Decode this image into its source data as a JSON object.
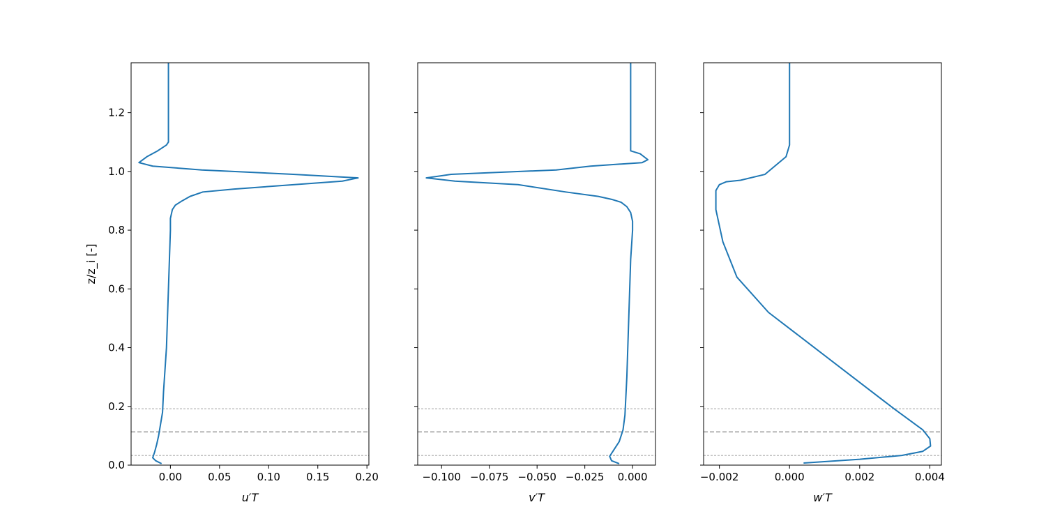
{
  "chart_data": [
    {
      "type": "line",
      "xlabel": "u′T",
      "ylabel": "z/z_i [-]",
      "xlim": [
        -0.04,
        0.202
      ],
      "ylim": [
        0.0,
        1.37
      ],
      "xticks": [
        0.0,
        0.05,
        0.1,
        0.15,
        0.2
      ],
      "xtick_labels": [
        "0.00",
        "0.05",
        "0.10",
        "0.15",
        "0.20"
      ],
      "yticks": [
        0.0,
        0.2,
        0.4,
        0.6,
        0.8,
        1.0,
        1.2
      ],
      "ytick_labels": [
        "0.0",
        "0.2",
        "0.4",
        "0.6",
        "0.8",
        "1.0",
        "1.2"
      ],
      "show_ytick_labels": true,
      "grid": false,
      "color": "#1f77b4",
      "hlines": [
        {
          "y": 0.192,
          "style": "thin"
        },
        {
          "y": 0.113,
          "style": "dashed"
        },
        {
          "y": 0.033,
          "style": "thin"
        }
      ],
      "series": [
        {
          "x": [
            -0.009,
            -0.015,
            -0.018,
            -0.016,
            -0.014,
            -0.012,
            -0.01,
            -0.008,
            -0.007,
            -0.004,
            -0.003,
            -0.002,
            -0.001,
            0.0,
            0.0,
            0.002,
            0.005,
            0.012,
            0.02,
            0.033,
            0.065,
            0.175,
            0.191,
            0.125,
            0.032,
            -0.018,
            -0.032,
            -0.024,
            -0.013,
            -0.004,
            -0.002,
            -0.002,
            -0.002
          ],
          "y": [
            0.005,
            0.015,
            0.025,
            0.045,
            0.07,
            0.1,
            0.14,
            0.18,
            0.25,
            0.4,
            0.5,
            0.6,
            0.7,
            0.8,
            0.84,
            0.87,
            0.885,
            0.9,
            0.915,
            0.93,
            0.94,
            0.967,
            0.978,
            0.99,
            1.005,
            1.018,
            1.03,
            1.05,
            1.07,
            1.09,
            1.1,
            1.2,
            1.37
          ]
        }
      ]
    },
    {
      "type": "line",
      "xlabel": "v′T",
      "ylabel": "",
      "xlim": [
        -0.1125,
        0.012
      ],
      "ylim": [
        0.0,
        1.37
      ],
      "xticks": [
        -0.1,
        -0.075,
        -0.05,
        -0.025,
        0.0
      ],
      "xtick_labels": [
        "−0.100",
        "−0.075",
        "−0.050",
        "−0.025",
        "0.000"
      ],
      "yticks": [
        0.0,
        0.2,
        0.4,
        0.6,
        0.8,
        1.0,
        1.2
      ],
      "ytick_labels": [],
      "show_ytick_labels": false,
      "grid": false,
      "color": "#1f77b4",
      "hlines": [
        {
          "y": 0.192,
          "style": "thin"
        },
        {
          "y": 0.113,
          "style": "dashed"
        },
        {
          "y": 0.033,
          "style": "thin"
        }
      ],
      "series": [
        {
          "x": [
            -0.007,
            -0.011,
            -0.012,
            -0.01,
            -0.007,
            -0.005,
            -0.004,
            -0.003,
            -0.002,
            -0.001,
            0.0,
            0.0,
            -0.001,
            -0.003,
            -0.006,
            -0.011,
            -0.018,
            -0.035,
            -0.06,
            -0.093,
            -0.108,
            -0.095,
            -0.04,
            -0.022,
            0.005,
            0.008,
            0.004,
            -0.001,
            -0.001,
            -0.001,
            -0.001
          ],
          "y": [
            0.005,
            0.015,
            0.03,
            0.05,
            0.08,
            0.12,
            0.17,
            0.3,
            0.5,
            0.7,
            0.8,
            0.83,
            0.86,
            0.88,
            0.895,
            0.905,
            0.915,
            0.93,
            0.955,
            0.967,
            0.978,
            0.99,
            1.005,
            1.018,
            1.03,
            1.04,
            1.06,
            1.07,
            1.09,
            1.2,
            1.37
          ]
        }
      ]
    },
    {
      "type": "line",
      "xlabel": "w′T",
      "ylabel": "",
      "xlim": [
        -0.00245,
        0.00433
      ],
      "ylim": [
        0.0,
        1.37
      ],
      "xticks": [
        -0.002,
        0.0,
        0.002,
        0.004
      ],
      "xtick_labels": [
        "−0.002",
        "0.000",
        "0.002",
        "0.004"
      ],
      "yticks": [
        0.0,
        0.2,
        0.4,
        0.6,
        0.8,
        1.0,
        1.2
      ],
      "ytick_labels": [],
      "show_ytick_labels": false,
      "grid": false,
      "color": "#1f77b4",
      "hlines": [
        {
          "y": 0.192,
          "style": "thin"
        },
        {
          "y": 0.113,
          "style": "dashed"
        },
        {
          "y": 0.033,
          "style": "thin"
        }
      ],
      "series": [
        {
          "x": [
            0.0004,
            0.002,
            0.0032,
            0.0038,
            0.00402,
            0.004,
            0.0038,
            0.0034,
            0.003,
            0.0018,
            0.0006,
            -0.0006,
            -0.0015,
            -0.0019,
            -0.0021,
            -0.0021,
            -0.002,
            -0.0018,
            -0.0014,
            -0.0007,
            -0.0004,
            -0.0001,
            0.0,
            0.0,
            0.0
          ],
          "y": [
            0.007,
            0.02,
            0.033,
            0.047,
            0.065,
            0.09,
            0.12,
            0.155,
            0.19,
            0.3,
            0.41,
            0.52,
            0.64,
            0.76,
            0.87,
            0.935,
            0.955,
            0.965,
            0.97,
            0.99,
            1.02,
            1.05,
            1.09,
            1.2,
            1.37
          ]
        }
      ]
    }
  ]
}
